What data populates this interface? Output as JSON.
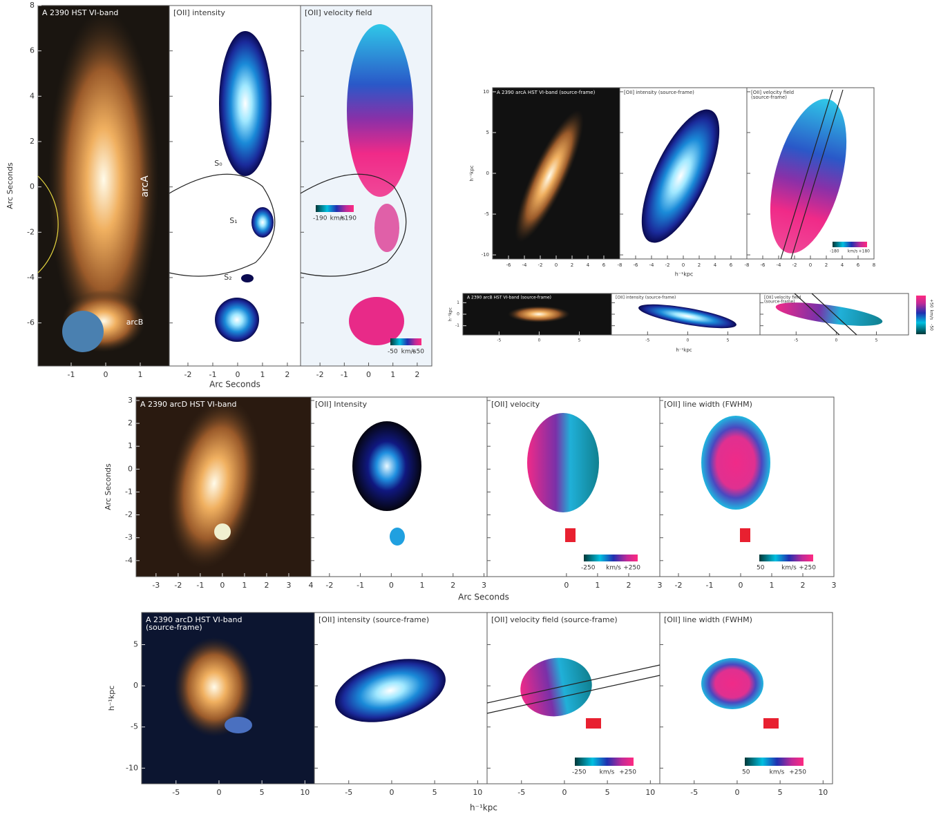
{
  "figures": [
    {
      "ylabel": "Arc Seconds",
      "xlabel": "Arc Seconds",
      "ylim": [
        -7.9,
        8
      ],
      "yticks": [
        -6,
        -4,
        -2,
        0,
        2,
        4,
        6,
        8
      ],
      "panels": [
        {
          "title": [
            "A 2390 HST VI-band"
          ],
          "xlim": [
            -1.96,
            1.84
          ],
          "xticks": [
            -1,
            0,
            1
          ],
          "labels": [
            "arcA",
            "arcB"
          ]
        },
        {
          "title": [
            "[OII] intensity"
          ],
          "xlim": [
            -2.75,
            2.53
          ],
          "xticks": [
            -2,
            -1,
            0,
            1,
            2
          ],
          "labels": [
            "S₀",
            "S₁",
            "S₂"
          ]
        },
        {
          "title": [
            "[OII] velocity field"
          ],
          "xlim": [
            -2.8,
            2.6
          ],
          "xticks": [
            -2,
            -1,
            0,
            1,
            2
          ],
          "colorbars": [
            {
              "min": "-190",
              "unit": "km/s",
              "max": "+190"
            },
            {
              "min": "-50",
              "unit": "km/s",
              "max": "+50"
            }
          ]
        }
      ]
    },
    {
      "ylabel": "h⁻¹kpc",
      "xlabel": "h⁻¹kpc",
      "ylim": [
        -10.5,
        10.5
      ],
      "yticks": [
        -10,
        -5,
        0,
        5,
        10
      ],
      "panels": [
        {
          "title": [
            "A 2390 arcA HST VI-band (source-frame)"
          ],
          "xlim": [
            -8,
            8
          ],
          "xticks": [
            -6,
            -4,
            -2,
            0,
            2,
            4,
            6
          ]
        },
        {
          "title": [
            "[OII] intensity (source-frame)"
          ],
          "xlim": [
            -8,
            8
          ],
          "xticks": [
            -8,
            -6,
            -4,
            -2,
            0,
            2,
            4,
            6
          ]
        },
        {
          "title": [
            "[OII] velocity field",
            "(source-frame)"
          ],
          "xlim": [
            -8,
            8
          ],
          "xticks": [
            -8,
            -6,
            -4,
            -2,
            0,
            2,
            4,
            6,
            8
          ],
          "colorbars": [
            {
              "min": "-180",
              "unit": "km/s",
              "max": "+180"
            }
          ]
        }
      ]
    },
    {
      "ylabel": "h⁻¹kpc",
      "xlabel": "h⁻¹kpc",
      "ylim": [
        -1.8,
        1.8
      ],
      "yticks": [
        -1,
        0,
        1
      ],
      "panels": [
        {
          "title": [
            "A 2390 arcB HST VI-band (source-frame)"
          ],
          "xlim": [
            -9.5,
            9
          ],
          "xticks": [
            -5,
            0,
            5
          ]
        },
        {
          "title": [
            "[OII] intensity (source-frame)"
          ],
          "xlim": [
            -9.5,
            9
          ],
          "xticks": [
            -5,
            0,
            5
          ]
        },
        {
          "title": [
            "[OII] velocity field",
            "(source-frame)"
          ],
          "xlim": [
            -9.5,
            9
          ],
          "xticks": [
            -5,
            0,
            5
          ],
          "colorbars": [
            {
              "min": "-50",
              "unit": "km/s",
              "max": "+50"
            }
          ]
        }
      ]
    },
    {
      "ylabel": "Arc Seconds",
      "xlabel": "Arc Seconds",
      "ylim": [
        -4.7,
        3.15
      ],
      "yticks": [
        -4,
        -3,
        -2,
        -1,
        0,
        1,
        2,
        3
      ],
      "panels": [
        {
          "title": [
            "A 2390 arcD HST VI-band"
          ],
          "xlim": [
            -3.9,
            4
          ],
          "xticks": [
            -3,
            -2,
            -1,
            0,
            1,
            2,
            3,
            4
          ]
        },
        {
          "title": [
            "[OII] Intensity"
          ],
          "xlim": [
            -2.6,
            3.1
          ],
          "xticks": [
            -2,
            -1,
            0,
            1,
            2,
            3
          ]
        },
        {
          "title": [
            "[OII] velocity"
          ],
          "xlim": [
            -2.55,
            3.0
          ],
          "xticks": [
            0,
            1,
            2,
            3
          ],
          "colorbars": [
            {
              "min": "-250",
              "unit": "km/s",
              "max": "+250"
            }
          ]
        },
        {
          "title": [
            "[OII] line width (FWHM)"
          ],
          "xlim": [
            -2.6,
            3.0
          ],
          "xticks": [
            -2,
            -1,
            0,
            1,
            2,
            3
          ],
          "colorbars": [
            {
              "min": "50",
              "unit": "km/s",
              "max": "+250"
            }
          ]
        }
      ]
    },
    {
      "ylabel": "h⁻¹kpc",
      "xlabel": "h⁻¹kpc",
      "ylim": [
        -11.9,
        8.9
      ],
      "yticks": [
        -10,
        -5,
        0,
        5
      ],
      "panels": [
        {
          "title": [
            "A 2390 arcD HST VI-band",
            "(source-frame)"
          ],
          "xlim": [
            -9,
            11.1
          ],
          "xticks": [
            -5,
            0,
            5,
            10
          ]
        },
        {
          "title": [
            "[OII] intensity (source-frame)"
          ],
          "xlim": [
            -9,
            11.1
          ],
          "xticks": [
            -5,
            0,
            5,
            10
          ]
        },
        {
          "title": [
            "[OII] velocity field (source-frame)"
          ],
          "xlim": [
            -9,
            11.1
          ],
          "xticks": [
            -5,
            0,
            5,
            10
          ],
          "colorbars": [
            {
              "min": "-250",
              "unit": "km/s",
              "max": "+250"
            }
          ]
        },
        {
          "title": [
            "[OII] line width (FWHM)"
          ],
          "xlim": [
            -9,
            11.1
          ],
          "xticks": [
            -5,
            0,
            5,
            10
          ],
          "colorbars": [
            {
              "min": "50",
              "unit": "km/s",
              "max": "+250"
            }
          ]
        }
      ]
    }
  ]
}
